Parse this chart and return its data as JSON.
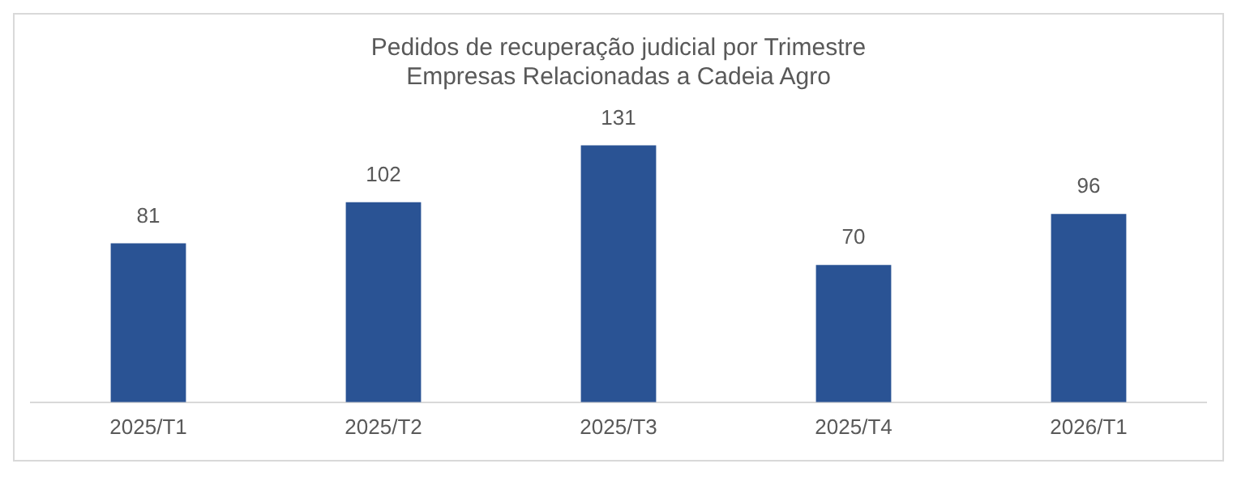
{
  "chart_data": {
    "type": "bar",
    "title": "Pedidos de recuperação judicial por Trimestre",
    "subtitle": "Empresas Relacionadas a Cadeia Agro",
    "categories": [
      "2025/T1",
      "2025/T2",
      "2025/T3",
      "2025/T4",
      "2026/T1"
    ],
    "values": [
      81,
      102,
      131,
      70,
      96
    ],
    "color": "#2a5394",
    "data_labels": true,
    "legend": false
  }
}
